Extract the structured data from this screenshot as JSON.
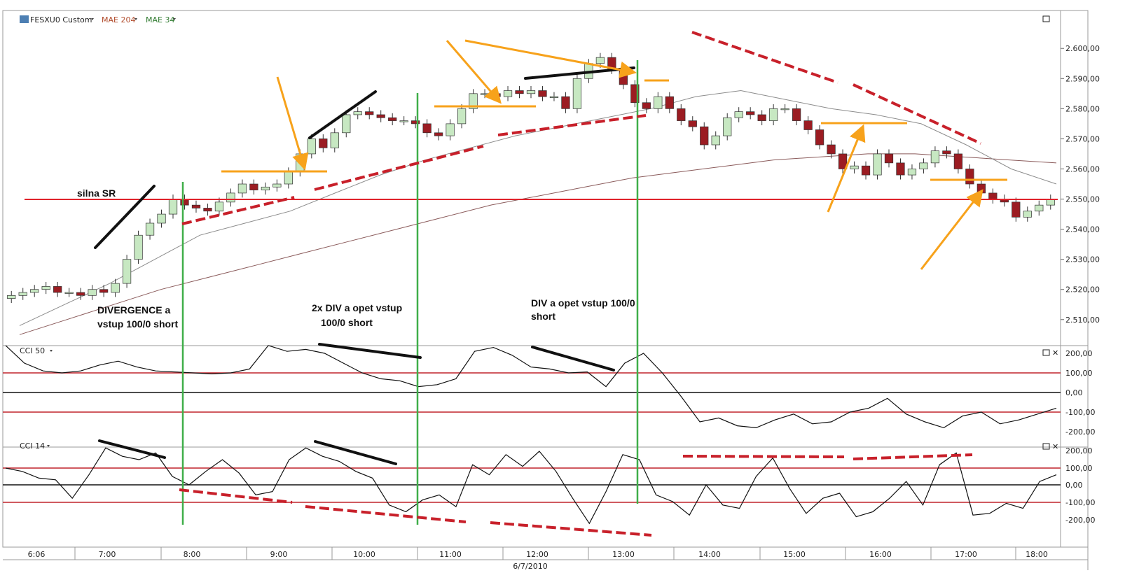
{
  "header": {
    "symbol": "FESXU0 Custom",
    "ma_slow": "MAE 204",
    "ma_fast": "MAE 34",
    "date": "6/7/2010",
    "cci_slow": "CCI 50",
    "cci_fast": "CCI 14"
  },
  "colors": {
    "up_candle": "#c7e8c2",
    "down_candle": "#9b1c22",
    "support_line": "#e0232b",
    "orange": "#f7a21b",
    "green_vertical": "#3fae49",
    "dashed_red": "#c8202a",
    "ma_slow_color": "#8a5a5a",
    "ma_fast_color": "#8c8c8c",
    "ma_slow_label": "#b04a2a",
    "ma_fast_label": "#2f7a2f"
  },
  "chart_data": [
    {
      "type": "candlestick",
      "title": "FESXU0 Custom",
      "x_ticks": [
        "6:06",
        "7:00",
        "8:00",
        "9:00",
        "10:00",
        "11:00",
        "12:00",
        "13:00",
        "14:00",
        "15:00",
        "16:00",
        "17:00",
        "18:00"
      ],
      "y_ticks": [
        "2.600,00",
        "2.590,00",
        "2.580,00",
        "2.570,00",
        "2.560,00",
        "2.550,00",
        "2.540,00",
        "2.530,00",
        "2.520,00",
        "2.510,00"
      ],
      "ylim": [
        2506,
        2604
      ],
      "series": [
        {
          "name": "MAE 204",
          "values": [
            2505,
            2510,
            2515,
            2520,
            2524,
            2528,
            2532,
            2536,
            2540,
            2544,
            2548,
            2551,
            2554,
            2557,
            2559,
            2561,
            2563,
            2564,
            2565,
            2565,
            2564,
            2563,
            2562
          ]
        },
        {
          "name": "MAE 34",
          "values": [
            2508,
            2515,
            2522,
            2530,
            2538,
            2542,
            2546,
            2552,
            2558,
            2563,
            2567,
            2571,
            2574,
            2577,
            2580,
            2584,
            2586,
            2583,
            2580,
            2578,
            2575,
            2568,
            2560,
            2555
          ]
        },
        {
          "name": "close",
          "values": [
            2518,
            2519,
            2520,
            2521,
            2519,
            2519,
            2518,
            2520,
            2519,
            2522,
            2530,
            2538,
            2542,
            2545,
            2550,
            2548,
            2547,
            2546,
            2549,
            2552,
            2555,
            2553,
            2554,
            2555,
            2559,
            2565,
            2570,
            2567,
            2572,
            2578,
            2579,
            2578,
            2577,
            2576,
            2576,
            2575,
            2572,
            2571,
            2575,
            2580,
            2585,
            2585,
            2584,
            2586,
            2585,
            2586,
            2584,
            2584,
            2580,
            2590,
            2595,
            2597,
            2593,
            2588,
            2582,
            2580,
            2584,
            2580,
            2576,
            2574,
            2568,
            2571,
            2577,
            2579,
            2578,
            2576,
            2580,
            2580,
            2576,
            2573,
            2568,
            2565,
            2560,
            2561,
            2558,
            2565,
            2562,
            2558,
            2560,
            2562,
            2566,
            2565,
            2560,
            2555,
            2552,
            2550,
            2549,
            2544,
            2546,
            2548,
            2550
          ]
        }
      ],
      "annotations": [
        "silna SR",
        "DIVERGENCE a",
        "vstup 100/0 short",
        "2x DIV a opet vstup",
        "100/0 short",
        "DIV a opet vstup 100/0",
        "short"
      ]
    },
    {
      "type": "line",
      "title": "CCI 50",
      "y_ticks": [
        "200,00",
        "100,00",
        "0,00",
        "-100,00",
        "-200,00"
      ],
      "ylim": [
        -250,
        250
      ],
      "series": [
        {
          "name": "CCI 50",
          "values": [
            240,
            150,
            110,
            100,
            110,
            140,
            160,
            130,
            110,
            105,
            100,
            95,
            100,
            120,
            240,
            210,
            220,
            200,
            150,
            100,
            70,
            60,
            30,
            40,
            70,
            210,
            230,
            190,
            130,
            120,
            100,
            105,
            30,
            150,
            200,
            100,
            -20,
            -150,
            -130,
            -170,
            -180,
            -140,
            -110,
            -160,
            -150,
            -100,
            -80,
            -30,
            -110,
            -150,
            -180,
            -120,
            -100,
            -160,
            -140,
            -110,
            -80
          ]
        }
      ]
    },
    {
      "type": "line",
      "title": "CCI 14",
      "y_ticks": [
        "200,00",
        "100,00",
        "0,00",
        "-100,00",
        "-200,00"
      ],
      "ylim": [
        -250,
        250
      ],
      "series": [
        {
          "name": "CCI 14",
          "values": [
            100,
            80,
            40,
            30,
            -80,
            60,
            220,
            170,
            150,
            190,
            50,
            0,
            80,
            150,
            70,
            -60,
            -40,
            150,
            220,
            170,
            140,
            80,
            40,
            -120,
            -160,
            -90,
            -60,
            -130,
            120,
            60,
            180,
            110,
            200,
            80,
            -80,
            -230,
            -40,
            180,
            150,
            -60,
            -100,
            -180,
            0,
            -120,
            -140,
            50,
            160,
            -20,
            -170,
            -80,
            -50,
            -190,
            -160,
            -80,
            20,
            -120,
            120,
            190,
            -180,
            -170,
            -110,
            -140,
            20,
            60
          ]
        }
      ]
    }
  ]
}
